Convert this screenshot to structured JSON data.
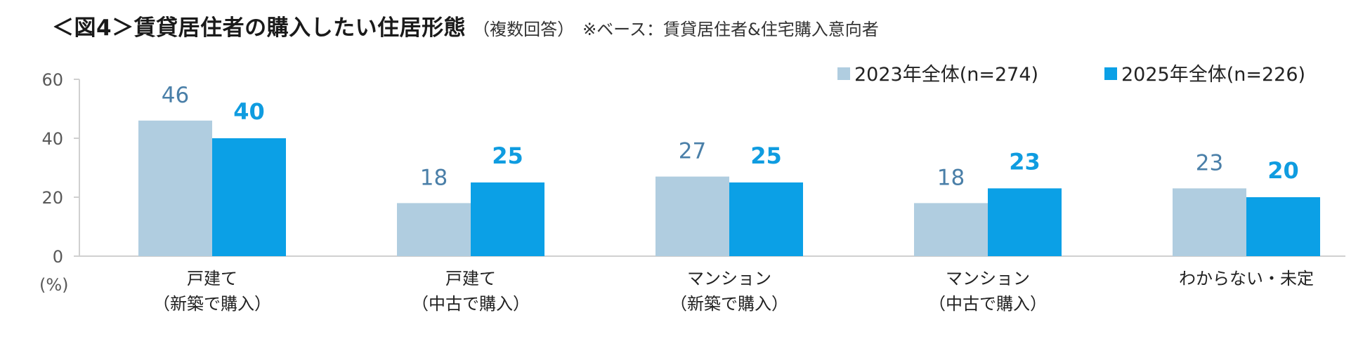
{
  "title": {
    "main": "＜図4＞賃貸居住者の購入したい住居形態",
    "note": "（複数回答）",
    "base": "※ベース：賃貸居住者&住宅購入意向者"
  },
  "colors": {
    "series_2023": "#b0cde0",
    "series_2025": "#0ba0e6",
    "value_2023": "#4a7fa8",
    "value_2025": "#0f9ce0",
    "axis": "#d0d0d0"
  },
  "chart_data": {
    "type": "bar",
    "title": "＜図4＞賃貸居住者の購入したい住居形態",
    "ylabel": "(%)",
    "ylim": [
      0,
      60
    ],
    "yticks": [
      "0",
      "20",
      "40",
      "60"
    ],
    "grid": false,
    "legend_position": "top-right",
    "categories": [
      [
        "戸建て",
        "（新築で購入）"
      ],
      [
        "戸建て",
        "（中古で購入）"
      ],
      [
        "マンション",
        "（新築で購入）"
      ],
      [
        "マンション",
        "（中古で購入）"
      ],
      [
        "わからない・未定"
      ]
    ],
    "series": [
      {
        "name": "2023年全体(n=274)",
        "values": [
          46,
          18,
          27,
          18,
          23
        ]
      },
      {
        "name": "2025年全体(n=226)",
        "values": [
          40,
          25,
          25,
          23,
          20
        ]
      }
    ]
  }
}
